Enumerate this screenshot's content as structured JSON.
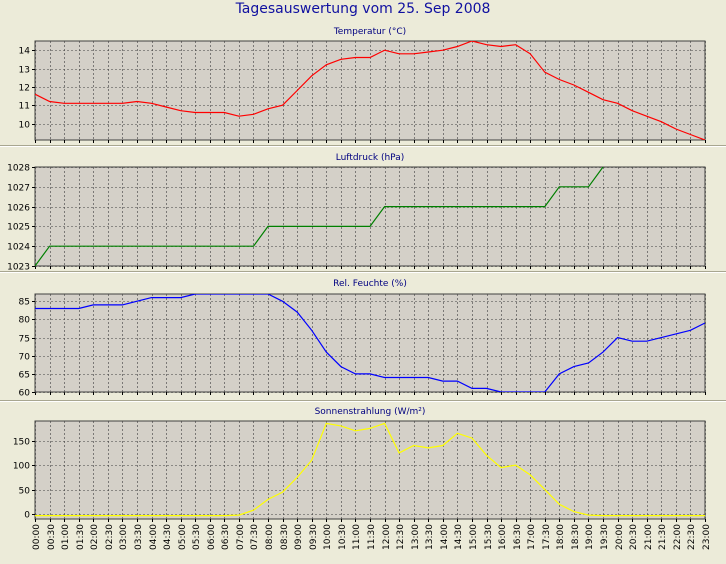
{
  "page_title": "Tagesauswertung vom 25. Sep 2008",
  "colors": {
    "background": "#ecebd9",
    "plot_area": "#d4d0c8",
    "grid": "#404040",
    "title": "#1010a0"
  },
  "x_ticks": [
    "00:00",
    "00:30",
    "01:00",
    "01:30",
    "02:00",
    "02:30",
    "03:00",
    "03:30",
    "04:00",
    "04:30",
    "05:00",
    "05:30",
    "06:00",
    "06:30",
    "07:00",
    "07:30",
    "08:00",
    "08:30",
    "09:00",
    "09:30",
    "10:00",
    "10:30",
    "11:00",
    "11:30",
    "12:00",
    "12:30",
    "13:00",
    "13:30",
    "14:00",
    "14:30",
    "15:00",
    "15:30",
    "16:00",
    "16:30",
    "17:00",
    "17:30",
    "18:00",
    "18:30",
    "19:00",
    "19:30",
    "20:00",
    "20:30",
    "21:00",
    "21:30",
    "22:00",
    "22:30",
    "23:00"
  ],
  "chart_data": [
    {
      "type": "line",
      "title": "Temperatur (°C)",
      "color": "#ff0000",
      "ylim": [
        9.1,
        14.5
      ],
      "yticks": [
        10,
        11,
        12,
        13,
        14
      ],
      "grid": true,
      "x": [
        "00:00",
        "00:30",
        "01:00",
        "02:00",
        "03:00",
        "03:30",
        "04:00",
        "04:30",
        "05:00",
        "05:30",
        "06:00",
        "06:30",
        "07:00",
        "07:30",
        "08:00",
        "08:30",
        "09:00",
        "09:30",
        "10:00",
        "10:30",
        "11:00",
        "11:30",
        "12:00",
        "12:30",
        "13:00",
        "13:30",
        "14:00",
        "14:30",
        "15:00",
        "15:30",
        "16:00",
        "16:30",
        "17:00",
        "17:30",
        "18:00",
        "18:30",
        "19:00",
        "19:30",
        "20:00",
        "20:30",
        "21:00",
        "21:30",
        "22:00",
        "22:30",
        "23:00"
      ],
      "values": [
        11.6,
        11.2,
        11.1,
        11.1,
        11.1,
        11.2,
        11.1,
        10.9,
        10.7,
        10.6,
        10.6,
        10.6,
        10.4,
        10.5,
        10.8,
        11.0,
        11.8,
        12.6,
        13.2,
        13.5,
        13.6,
        13.6,
        14.0,
        13.8,
        13.8,
        13.9,
        14.0,
        14.2,
        14.5,
        14.3,
        14.2,
        14.3,
        13.8,
        12.8,
        12.4,
        12.1,
        11.7,
        11.3,
        11.1,
        10.7,
        10.4,
        10.1,
        9.7,
        9.4,
        9.1
      ]
    },
    {
      "type": "line",
      "title": "Luftdruck (hPa)",
      "color": "#008000",
      "ylim": [
        1023,
        1028
      ],
      "yticks": [
        1023,
        1024,
        1025,
        1026,
        1027,
        1028
      ],
      "grid": true,
      "x": [
        "00:00",
        "00:30",
        "07:30",
        "08:00",
        "11:30",
        "12:00",
        "17:30",
        "18:00",
        "19:00",
        "19:30"
      ],
      "values": [
        1023,
        1024,
        1024,
        1025,
        1025,
        1026,
        1026,
        1027,
        1027,
        1028
      ]
    },
    {
      "type": "line",
      "title": "Rel. Feuchte (%)",
      "color": "#0000ff",
      "ylim": [
        60,
        87
      ],
      "yticks": [
        60,
        65,
        70,
        75,
        80,
        85
      ],
      "grid": true,
      "x": [
        "00:00",
        "01:30",
        "02:00",
        "03:00",
        "04:00",
        "05:00",
        "05:30",
        "08:00",
        "08:30",
        "09:00",
        "09:30",
        "10:00",
        "10:30",
        "11:00",
        "11:30",
        "12:00",
        "12:30",
        "13:00",
        "13:30",
        "14:00",
        "14:30",
        "15:00",
        "15:30",
        "16:00",
        "16:30",
        "17:00",
        "17:30",
        "18:00",
        "18:30",
        "19:00",
        "19:30",
        "20:00",
        "20:30",
        "21:00",
        "21:30",
        "22:00",
        "22:30",
        "23:00"
      ],
      "values": [
        83,
        83,
        84,
        84,
        86,
        86,
        87,
        87,
        85,
        82,
        77,
        71,
        67,
        65,
        65,
        64,
        64,
        64,
        64,
        63,
        63,
        61,
        61,
        60,
        60,
        60,
        60,
        65,
        67,
        68,
        71,
        75,
        74,
        74,
        75,
        76,
        77,
        79
      ]
    },
    {
      "type": "line",
      "title": "Sonnenstrahlung (W/m²)",
      "color": "#ffff00",
      "ylim": [
        -10,
        190
      ],
      "yticks": [
        0,
        50,
        100,
        150
      ],
      "grid": true,
      "x": [
        "00:00",
        "06:30",
        "07:00",
        "07:30",
        "08:00",
        "08:30",
        "09:00",
        "09:30",
        "10:00",
        "10:30",
        "11:00",
        "11:30",
        "12:00",
        "12:30",
        "13:00",
        "13:30",
        "14:00",
        "14:30",
        "15:00",
        "15:30",
        "16:00",
        "16:30",
        "17:00",
        "17:30",
        "18:00",
        "18:30",
        "19:00",
        "19:30",
        "20:00",
        "20:30",
        "21:00",
        "23:00"
      ],
      "values": [
        -3,
        -3,
        -2,
        8,
        30,
        45,
        75,
        110,
        185,
        180,
        170,
        175,
        185,
        125,
        140,
        135,
        140,
        165,
        155,
        120,
        95,
        100,
        80,
        50,
        20,
        5,
        -2,
        -3,
        -3,
        -3,
        -3,
        -3
      ]
    }
  ]
}
